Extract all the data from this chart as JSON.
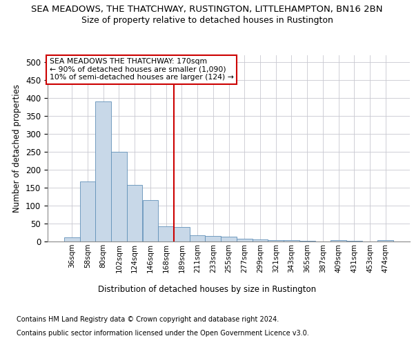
{
  "title1": "SEA MEADOWS, THE THATCHWAY, RUSTINGTON, LITTLEHAMPTON, BN16 2BN",
  "title2": "Size of property relative to detached houses in Rustington",
  "xlabel": "Distribution of detached houses by size in Rustington",
  "ylabel": "Number of detached properties",
  "footnote1": "Contains HM Land Registry data © Crown copyright and database right 2024.",
  "footnote2": "Contains public sector information licensed under the Open Government Licence v3.0.",
  "bar_color": "#c8d8e8",
  "bar_edge_color": "#6090b8",
  "grid_color": "#c8c8d0",
  "vline_color": "#cc0000",
  "annotation_box_color": "#cc0000",
  "annotation_text_line1": "SEA MEADOWS THE THATCHWAY: 170sqm",
  "annotation_text_line2": "← 90% of detached houses are smaller (1,090)",
  "annotation_text_line3": "10% of semi-detached houses are larger (124) →",
  "vline_x": 6.5,
  "categories": [
    "36sqm",
    "58sqm",
    "80sqm",
    "102sqm",
    "124sqm",
    "146sqm",
    "168sqm",
    "189sqm",
    "211sqm",
    "233sqm",
    "255sqm",
    "277sqm",
    "299sqm",
    "321sqm",
    "343sqm",
    "365sqm",
    "387sqm",
    "409sqm",
    "431sqm",
    "453sqm",
    "474sqm"
  ],
  "values": [
    12,
    167,
    390,
    250,
    157,
    115,
    43,
    40,
    18,
    15,
    14,
    8,
    6,
    4,
    3,
    1,
    0,
    3,
    1,
    0,
    4
  ],
  "ylim": [
    0,
    520
  ],
  "yticks": [
    0,
    50,
    100,
    150,
    200,
    250,
    300,
    350,
    400,
    450,
    500
  ],
  "background_color": "#ffffff"
}
